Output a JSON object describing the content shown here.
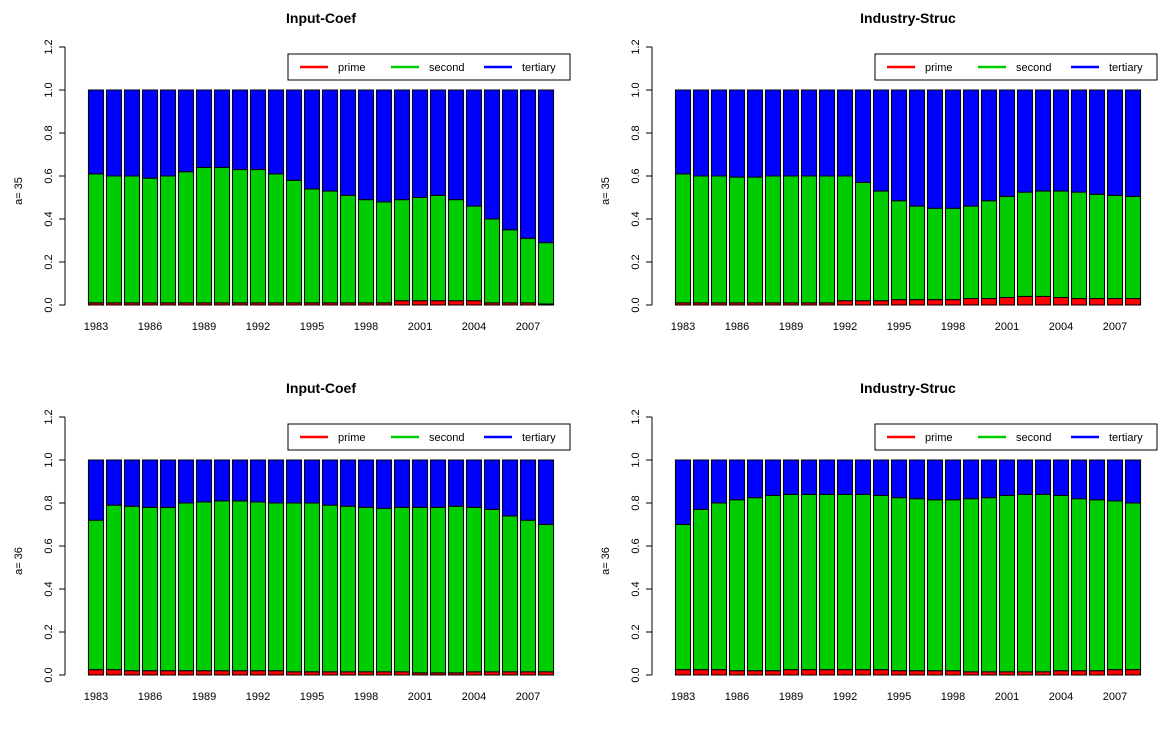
{
  "colors": {
    "prime": "#ff0000",
    "second": "#00cd00",
    "tertiary": "#0000ff",
    "axis": "#000000"
  },
  "chart_data": [
    {
      "type": "bar",
      "stacked": true,
      "title": "Input-Coef",
      "ylabel": "a= 35",
      "ylim": [
        0,
        1.2
      ],
      "yticks": [
        "0.0",
        "0.2",
        "0.4",
        "0.6",
        "0.8",
        "1.0",
        "1.2"
      ],
      "grid": false,
      "legend": "top-right",
      "xtick_labels": [
        "1983",
        "1986",
        "1989",
        "1992",
        "1995",
        "1998",
        "2001",
        "2004",
        "2007"
      ],
      "categories": [
        "1983",
        "1984",
        "1985",
        "1986",
        "1987",
        "1988",
        "1989",
        "1990",
        "1991",
        "1992",
        "1993",
        "1994",
        "1995",
        "1996",
        "1997",
        "1998",
        "1999",
        "2000",
        "2001",
        "2002",
        "2003",
        "2004",
        "2005",
        "2006",
        "2007",
        "2008"
      ],
      "series": [
        {
          "name": "prime",
          "values": [
            0.01,
            0.01,
            0.01,
            0.01,
            0.01,
            0.01,
            0.01,
            0.01,
            0.01,
            0.01,
            0.01,
            0.01,
            0.01,
            0.01,
            0.01,
            0.01,
            0.01,
            0.02,
            0.02,
            0.02,
            0.02,
            0.02,
            0.01,
            0.01,
            0.01,
            0.005
          ]
        },
        {
          "name": "second",
          "values": [
            0.6,
            0.59,
            0.59,
            0.58,
            0.59,
            0.61,
            0.63,
            0.63,
            0.62,
            0.62,
            0.6,
            0.57,
            0.53,
            0.52,
            0.5,
            0.48,
            0.47,
            0.47,
            0.48,
            0.49,
            0.47,
            0.44,
            0.39,
            0.34,
            0.3,
            0.285
          ]
        },
        {
          "name": "tertiary",
          "values": [
            0.39,
            0.4,
            0.4,
            0.41,
            0.4,
            0.38,
            0.36,
            0.36,
            0.37,
            0.37,
            0.39,
            0.42,
            0.46,
            0.47,
            0.49,
            0.51,
            0.52,
            0.51,
            0.5,
            0.49,
            0.51,
            0.54,
            0.6,
            0.65,
            0.69,
            0.71
          ]
        }
      ]
    },
    {
      "type": "bar",
      "stacked": true,
      "title": "Industry-Struc",
      "ylabel": "a= 35",
      "ylim": [
        0,
        1.2
      ],
      "yticks": [
        "0.0",
        "0.2",
        "0.4",
        "0.6",
        "0.8",
        "1.0",
        "1.2"
      ],
      "grid": false,
      "legend": "top-right",
      "xtick_labels": [
        "1983",
        "1986",
        "1989",
        "1992",
        "1995",
        "1998",
        "2001",
        "2004",
        "2007"
      ],
      "categories": [
        "1983",
        "1984",
        "1985",
        "1986",
        "1987",
        "1988",
        "1989",
        "1990",
        "1991",
        "1992",
        "1993",
        "1994",
        "1995",
        "1996",
        "1997",
        "1998",
        "1999",
        "2000",
        "2001",
        "2002",
        "2003",
        "2004",
        "2005",
        "2006",
        "2007",
        "2008"
      ],
      "series": [
        {
          "name": "prime",
          "values": [
            0.01,
            0.01,
            0.01,
            0.01,
            0.01,
            0.01,
            0.01,
            0.01,
            0.01,
            0.02,
            0.02,
            0.02,
            0.025,
            0.025,
            0.025,
            0.025,
            0.03,
            0.03,
            0.035,
            0.04,
            0.04,
            0.035,
            0.03,
            0.03,
            0.03,
            0.03
          ]
        },
        {
          "name": "second",
          "values": [
            0.6,
            0.59,
            0.59,
            0.585,
            0.585,
            0.59,
            0.59,
            0.59,
            0.59,
            0.58,
            0.55,
            0.51,
            0.46,
            0.435,
            0.425,
            0.425,
            0.43,
            0.455,
            0.47,
            0.485,
            0.49,
            0.495,
            0.495,
            0.485,
            0.48,
            0.475
          ]
        },
        {
          "name": "tertiary",
          "values": [
            0.39,
            0.4,
            0.4,
            0.405,
            0.405,
            0.4,
            0.4,
            0.4,
            0.4,
            0.4,
            0.43,
            0.47,
            0.515,
            0.54,
            0.55,
            0.55,
            0.54,
            0.515,
            0.495,
            0.475,
            0.47,
            0.47,
            0.475,
            0.485,
            0.49,
            0.495
          ]
        }
      ]
    },
    {
      "type": "bar",
      "stacked": true,
      "title": "Input-Coef",
      "ylabel": "a= 36",
      "ylim": [
        0,
        1.2
      ],
      "yticks": [
        "0.0",
        "0.2",
        "0.4",
        "0.6",
        "0.8",
        "1.0",
        "1.2"
      ],
      "grid": false,
      "legend": "top-right",
      "xtick_labels": [
        "1983",
        "1986",
        "1989",
        "1992",
        "1995",
        "1998",
        "2001",
        "2004",
        "2007"
      ],
      "categories": [
        "1983",
        "1984",
        "1985",
        "1986",
        "1987",
        "1988",
        "1989",
        "1990",
        "1991",
        "1992",
        "1993",
        "1994",
        "1995",
        "1996",
        "1997",
        "1998",
        "1999",
        "2000",
        "2001",
        "2002",
        "2003",
        "2004",
        "2005",
        "2006",
        "2007",
        "2008"
      ],
      "series": [
        {
          "name": "prime",
          "values": [
            0.025,
            0.025,
            0.02,
            0.02,
            0.02,
            0.02,
            0.02,
            0.02,
            0.02,
            0.02,
            0.02,
            0.015,
            0.015,
            0.015,
            0.015,
            0.015,
            0.015,
            0.015,
            0.01,
            0.01,
            0.01,
            0.015,
            0.015,
            0.015,
            0.015,
            0.015
          ]
        },
        {
          "name": "second",
          "values": [
            0.695,
            0.765,
            0.765,
            0.76,
            0.76,
            0.78,
            0.785,
            0.79,
            0.79,
            0.785,
            0.78,
            0.785,
            0.785,
            0.775,
            0.77,
            0.765,
            0.76,
            0.765,
            0.77,
            0.77,
            0.775,
            0.765,
            0.755,
            0.725,
            0.705,
            0.685
          ]
        },
        {
          "name": "tertiary",
          "values": [
            0.28,
            0.21,
            0.215,
            0.22,
            0.22,
            0.2,
            0.195,
            0.19,
            0.19,
            0.195,
            0.2,
            0.2,
            0.2,
            0.21,
            0.215,
            0.22,
            0.225,
            0.22,
            0.22,
            0.22,
            0.215,
            0.22,
            0.23,
            0.26,
            0.28,
            0.3
          ]
        }
      ]
    },
    {
      "type": "bar",
      "stacked": true,
      "title": "Industry-Struc",
      "ylabel": "a= 36",
      "ylim": [
        0,
        1.2
      ],
      "yticks": [
        "0.0",
        "0.2",
        "0.4",
        "0.6",
        "0.8",
        "1.0",
        "1.2"
      ],
      "grid": false,
      "legend": "top-right",
      "xtick_labels": [
        "1983",
        "1986",
        "1989",
        "1992",
        "1995",
        "1998",
        "2001",
        "2004",
        "2007"
      ],
      "categories": [
        "1983",
        "1984",
        "1985",
        "1986",
        "1987",
        "1988",
        "1989",
        "1990",
        "1991",
        "1992",
        "1993",
        "1994",
        "1995",
        "1996",
        "1997",
        "1998",
        "1999",
        "2000",
        "2001",
        "2002",
        "2003",
        "2004",
        "2005",
        "2006",
        "2007",
        "2008"
      ],
      "series": [
        {
          "name": "prime",
          "values": [
            0.025,
            0.025,
            0.025,
            0.02,
            0.02,
            0.02,
            0.025,
            0.025,
            0.025,
            0.025,
            0.025,
            0.025,
            0.02,
            0.02,
            0.02,
            0.02,
            0.015,
            0.015,
            0.015,
            0.015,
            0.015,
            0.02,
            0.02,
            0.02,
            0.025,
            0.025
          ]
        },
        {
          "name": "second",
          "values": [
            0.675,
            0.745,
            0.775,
            0.795,
            0.805,
            0.815,
            0.815,
            0.815,
            0.815,
            0.815,
            0.815,
            0.81,
            0.805,
            0.8,
            0.795,
            0.795,
            0.805,
            0.81,
            0.82,
            0.825,
            0.825,
            0.815,
            0.8,
            0.795,
            0.785,
            0.775
          ]
        },
        {
          "name": "tertiary",
          "values": [
            0.3,
            0.23,
            0.2,
            0.185,
            0.175,
            0.165,
            0.16,
            0.16,
            0.16,
            0.16,
            0.16,
            0.165,
            0.175,
            0.18,
            0.185,
            0.185,
            0.18,
            0.175,
            0.165,
            0.16,
            0.16,
            0.165,
            0.18,
            0.185,
            0.19,
            0.2
          ]
        }
      ]
    }
  ]
}
